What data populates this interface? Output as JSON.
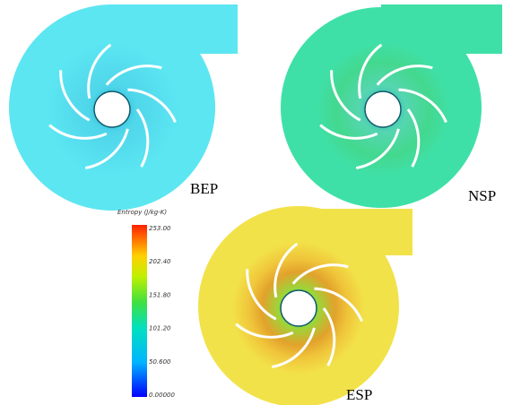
{
  "panels": [
    {
      "label": "BEP"
    },
    {
      "label": "NSP"
    },
    {
      "label": "ESP"
    }
  ],
  "colorbar": {
    "title": "Entropy (J/kg-K)",
    "ticks": [
      "253.00",
      "202.40",
      "151.80",
      "101.20",
      "50.600",
      "0.00000"
    ]
  }
}
